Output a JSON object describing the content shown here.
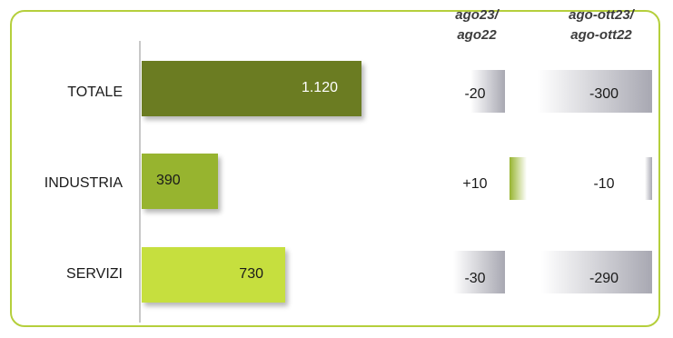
{
  "chart_data": {
    "type": "bar",
    "orientation": "horizontal",
    "title": "",
    "categories": [
      "TOTALE",
      "INDUSTRIA",
      "SERVIZI"
    ],
    "values": [
      1120,
      390,
      730
    ],
    "value_labels": [
      "1.120",
      "390",
      "730"
    ],
    "bar_colors": [
      "#6b7c22",
      "#97b42f",
      "#c6df3e"
    ],
    "delta_columns": [
      {
        "header": [
          "ago23/",
          "ago22"
        ],
        "values": [
          -20,
          10,
          -30
        ],
        "labels": [
          "-20",
          "+10",
          "-30"
        ]
      },
      {
        "header": [
          "ago-ott23/",
          "ago-ott22"
        ],
        "values": [
          -300,
          -10,
          -290
        ],
        "labels": [
          "-300",
          "-10",
          "-290"
        ]
      }
    ],
    "negative_color": "#a8a8b2",
    "positive_color": "#97b42f"
  }
}
